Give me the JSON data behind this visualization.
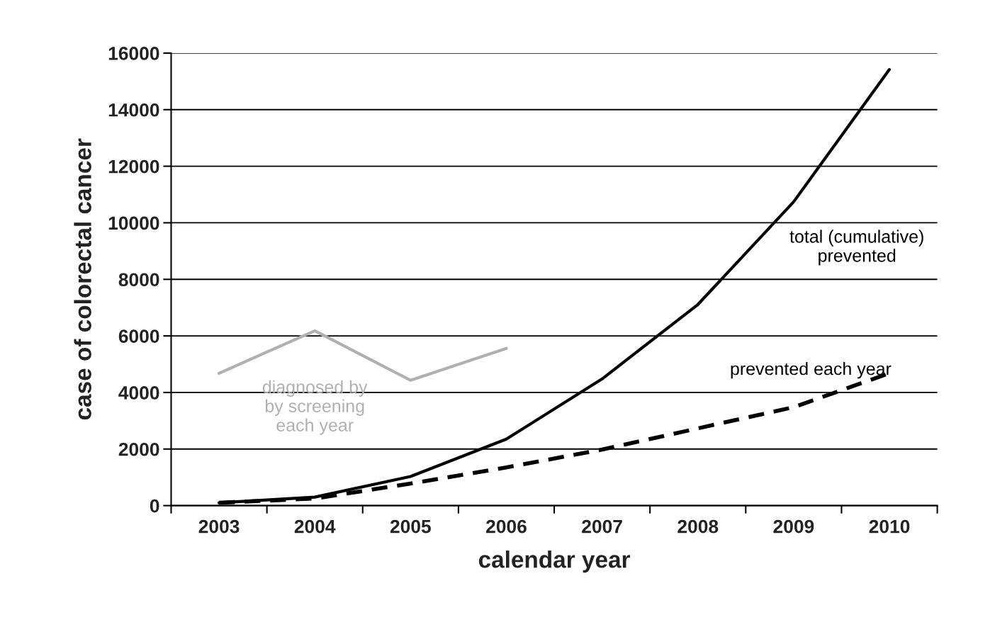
{
  "chart_data": {
    "type": "line",
    "xlabel": "calendar year",
    "ylabel": "case of colorectal cancer",
    "categories": [
      "2003",
      "2004",
      "2005",
      "2006",
      "2007",
      "2008",
      "2009",
      "2010"
    ],
    "series": [
      {
        "name": "diagnosed by\nby screening\neach year",
        "color": "#b0b0b0",
        "line_style": "solid",
        "values": [
          4680,
          6180,
          4430,
          5560,
          null,
          null,
          null,
          null
        ]
      },
      {
        "name": "total (cumulative)\nprevented",
        "color": "#000000",
        "line_style": "solid",
        "values": [
          100,
          300,
          1030,
          2350,
          4480,
          7110,
          10740,
          15420
        ]
      },
      {
        "name": "prevented each year",
        "color": "#000000",
        "line_style": "dashed",
        "values": [
          100,
          250,
          780,
          1350,
          1980,
          2730,
          3480,
          4680
        ]
      }
    ],
    "ylim": [
      0,
      16000
    ],
    "yticks": [
      0,
      2000,
      4000,
      6000,
      8000,
      10000,
      12000,
      14000,
      16000
    ],
    "grid": "y",
    "legend": false,
    "marker": "none"
  }
}
